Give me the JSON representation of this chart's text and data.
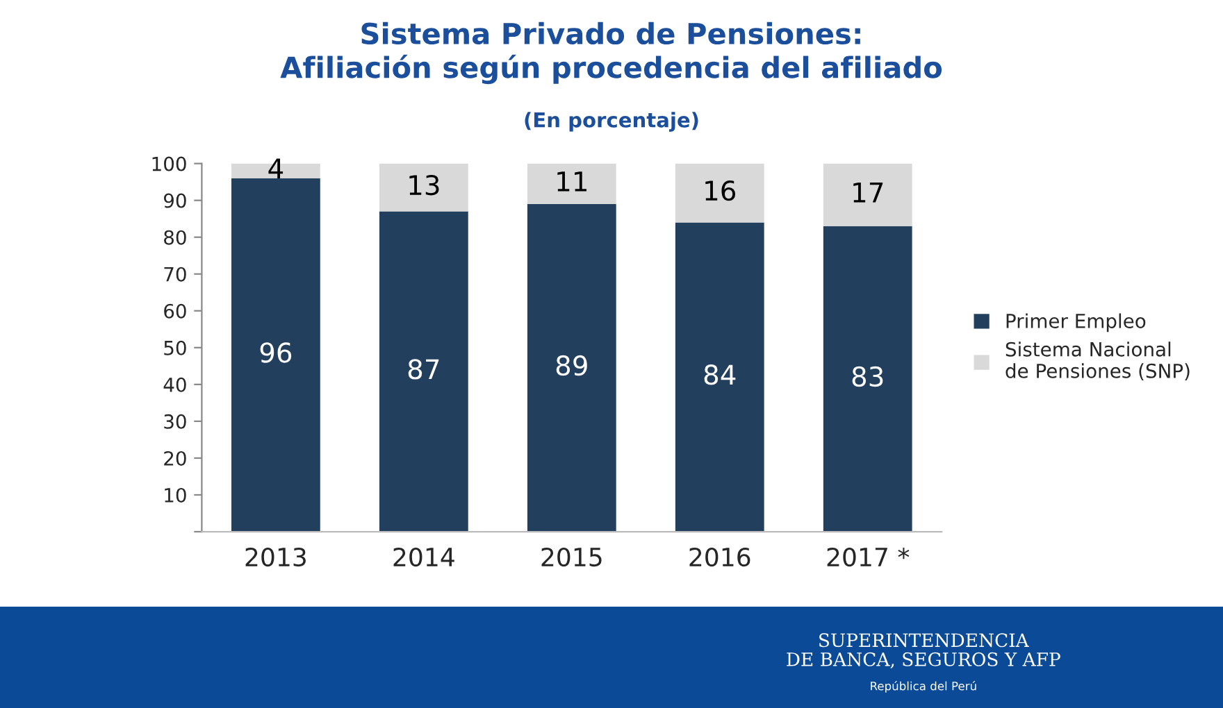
{
  "chart_data": {
    "type": "bar",
    "title": "Sistema Privado de Pensiones:\nAfiliación según procedencia del afiliado",
    "subtitle": "(En porcentaje)",
    "categories": [
      "2013",
      "2014",
      "2015",
      "2016",
      "2017 *"
    ],
    "series": [
      {
        "name": "Primer Empleo",
        "color": "#233f5e",
        "values": [
          96,
          87,
          89,
          84,
          83
        ]
      },
      {
        "name": "Sistema Nacional\nde Pensiones (SNP)",
        "color": "#d9d9d9",
        "values": [
          4,
          13,
          11,
          16,
          17
        ]
      }
    ],
    "stacked": true,
    "data_labels": true,
    "ylim": [
      0,
      100
    ],
    "yticks": [
      {
        "value": 0,
        "label": null
      },
      10,
      20,
      30,
      40,
      50,
      60,
      70,
      80,
      90,
      100
    ],
    "grid": false,
    "legend": "right",
    "annotations": [
      "SUPERINTENDENCIA\nDE BANCA, SEGUROS Y AFP",
      "República del Perú"
    ]
  }
}
